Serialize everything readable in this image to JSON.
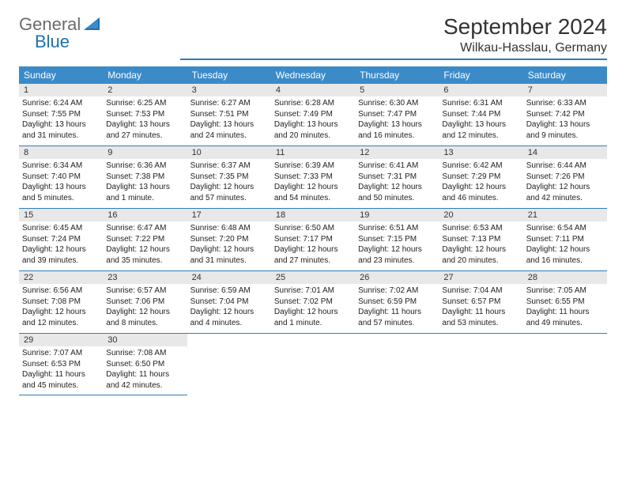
{
  "logo": {
    "general": "General",
    "blue": "Blue"
  },
  "title": "September 2024",
  "location": "Wilkau-Hasslau, Germany",
  "colors": {
    "header_bg": "#3b8bc9",
    "border": "#2f7bbf",
    "daynum_bg": "#e8e8e8",
    "logo_general": "#6b6b6b",
    "logo_blue": "#1f6fb2"
  },
  "weekdays": [
    "Sunday",
    "Monday",
    "Tuesday",
    "Wednesday",
    "Thursday",
    "Friday",
    "Saturday"
  ],
  "weeks": [
    [
      {
        "n": "1",
        "sr": "Sunrise: 6:24 AM",
        "ss": "Sunset: 7:55 PM",
        "dl": "Daylight: 13 hours and 31 minutes."
      },
      {
        "n": "2",
        "sr": "Sunrise: 6:25 AM",
        "ss": "Sunset: 7:53 PM",
        "dl": "Daylight: 13 hours and 27 minutes."
      },
      {
        "n": "3",
        "sr": "Sunrise: 6:27 AM",
        "ss": "Sunset: 7:51 PM",
        "dl": "Daylight: 13 hours and 24 minutes."
      },
      {
        "n": "4",
        "sr": "Sunrise: 6:28 AM",
        "ss": "Sunset: 7:49 PM",
        "dl": "Daylight: 13 hours and 20 minutes."
      },
      {
        "n": "5",
        "sr": "Sunrise: 6:30 AM",
        "ss": "Sunset: 7:47 PM",
        "dl": "Daylight: 13 hours and 16 minutes."
      },
      {
        "n": "6",
        "sr": "Sunrise: 6:31 AM",
        "ss": "Sunset: 7:44 PM",
        "dl": "Daylight: 13 hours and 12 minutes."
      },
      {
        "n": "7",
        "sr": "Sunrise: 6:33 AM",
        "ss": "Sunset: 7:42 PM",
        "dl": "Daylight: 13 hours and 9 minutes."
      }
    ],
    [
      {
        "n": "8",
        "sr": "Sunrise: 6:34 AM",
        "ss": "Sunset: 7:40 PM",
        "dl": "Daylight: 13 hours and 5 minutes."
      },
      {
        "n": "9",
        "sr": "Sunrise: 6:36 AM",
        "ss": "Sunset: 7:38 PM",
        "dl": "Daylight: 13 hours and 1 minute."
      },
      {
        "n": "10",
        "sr": "Sunrise: 6:37 AM",
        "ss": "Sunset: 7:35 PM",
        "dl": "Daylight: 12 hours and 57 minutes."
      },
      {
        "n": "11",
        "sr": "Sunrise: 6:39 AM",
        "ss": "Sunset: 7:33 PM",
        "dl": "Daylight: 12 hours and 54 minutes."
      },
      {
        "n": "12",
        "sr": "Sunrise: 6:41 AM",
        "ss": "Sunset: 7:31 PM",
        "dl": "Daylight: 12 hours and 50 minutes."
      },
      {
        "n": "13",
        "sr": "Sunrise: 6:42 AM",
        "ss": "Sunset: 7:29 PM",
        "dl": "Daylight: 12 hours and 46 minutes."
      },
      {
        "n": "14",
        "sr": "Sunrise: 6:44 AM",
        "ss": "Sunset: 7:26 PM",
        "dl": "Daylight: 12 hours and 42 minutes."
      }
    ],
    [
      {
        "n": "15",
        "sr": "Sunrise: 6:45 AM",
        "ss": "Sunset: 7:24 PM",
        "dl": "Daylight: 12 hours and 39 minutes."
      },
      {
        "n": "16",
        "sr": "Sunrise: 6:47 AM",
        "ss": "Sunset: 7:22 PM",
        "dl": "Daylight: 12 hours and 35 minutes."
      },
      {
        "n": "17",
        "sr": "Sunrise: 6:48 AM",
        "ss": "Sunset: 7:20 PM",
        "dl": "Daylight: 12 hours and 31 minutes."
      },
      {
        "n": "18",
        "sr": "Sunrise: 6:50 AM",
        "ss": "Sunset: 7:17 PM",
        "dl": "Daylight: 12 hours and 27 minutes."
      },
      {
        "n": "19",
        "sr": "Sunrise: 6:51 AM",
        "ss": "Sunset: 7:15 PM",
        "dl": "Daylight: 12 hours and 23 minutes."
      },
      {
        "n": "20",
        "sr": "Sunrise: 6:53 AM",
        "ss": "Sunset: 7:13 PM",
        "dl": "Daylight: 12 hours and 20 minutes."
      },
      {
        "n": "21",
        "sr": "Sunrise: 6:54 AM",
        "ss": "Sunset: 7:11 PM",
        "dl": "Daylight: 12 hours and 16 minutes."
      }
    ],
    [
      {
        "n": "22",
        "sr": "Sunrise: 6:56 AM",
        "ss": "Sunset: 7:08 PM",
        "dl": "Daylight: 12 hours and 12 minutes."
      },
      {
        "n": "23",
        "sr": "Sunrise: 6:57 AM",
        "ss": "Sunset: 7:06 PM",
        "dl": "Daylight: 12 hours and 8 minutes."
      },
      {
        "n": "24",
        "sr": "Sunrise: 6:59 AM",
        "ss": "Sunset: 7:04 PM",
        "dl": "Daylight: 12 hours and 4 minutes."
      },
      {
        "n": "25",
        "sr": "Sunrise: 7:01 AM",
        "ss": "Sunset: 7:02 PM",
        "dl": "Daylight: 12 hours and 1 minute."
      },
      {
        "n": "26",
        "sr": "Sunrise: 7:02 AM",
        "ss": "Sunset: 6:59 PM",
        "dl": "Daylight: 11 hours and 57 minutes."
      },
      {
        "n": "27",
        "sr": "Sunrise: 7:04 AM",
        "ss": "Sunset: 6:57 PM",
        "dl": "Daylight: 11 hours and 53 minutes."
      },
      {
        "n": "28",
        "sr": "Sunrise: 7:05 AM",
        "ss": "Sunset: 6:55 PM",
        "dl": "Daylight: 11 hours and 49 minutes."
      }
    ],
    [
      {
        "n": "29",
        "sr": "Sunrise: 7:07 AM",
        "ss": "Sunset: 6:53 PM",
        "dl": "Daylight: 11 hours and 45 minutes."
      },
      {
        "n": "30",
        "sr": "Sunrise: 7:08 AM",
        "ss": "Sunset: 6:50 PM",
        "dl": "Daylight: 11 hours and 42 minutes."
      },
      null,
      null,
      null,
      null,
      null
    ]
  ]
}
